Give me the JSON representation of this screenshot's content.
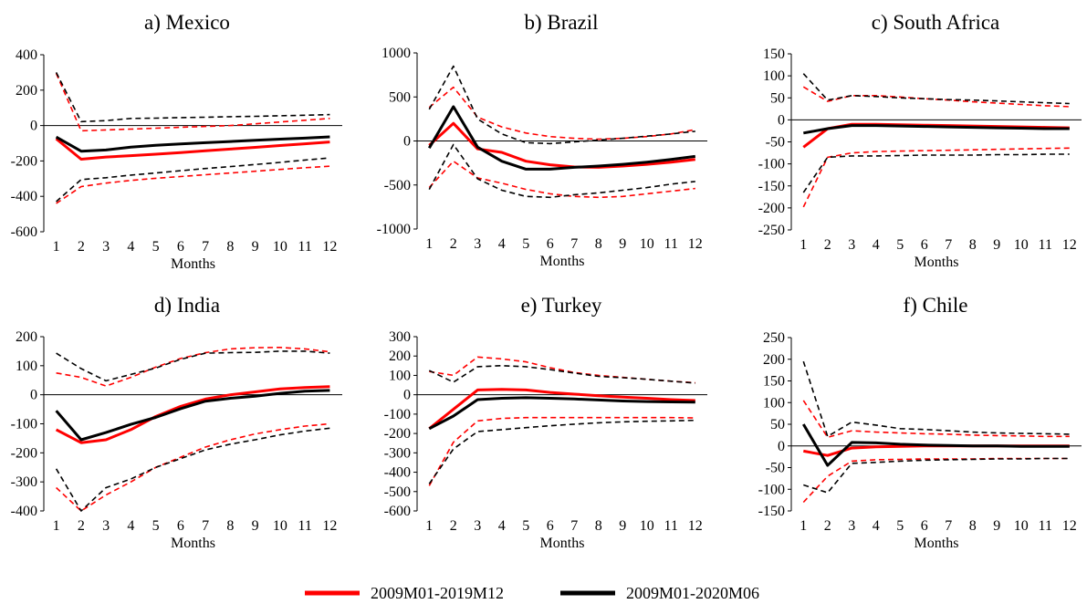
{
  "legend": [
    {
      "name": "2009M01-2019M12",
      "color": "#ff0000"
    },
    {
      "name": "2009M01-2020M06",
      "color": "#000000"
    }
  ],
  "chart_data": [
    {
      "type": "line",
      "title": "a) Mexico",
      "xlabel": "Months",
      "ylabel": "",
      "x": [
        1,
        2,
        3,
        4,
        5,
        6,
        7,
        8,
        9,
        10,
        11,
        12
      ],
      "ylim": [
        -600,
        400
      ],
      "yticks": [
        -600,
        -400,
        -200,
        0,
        200,
        400
      ],
      "series": [
        {
          "name": "2009M01-2019M12",
          "color": "#ff0000",
          "style": "solid",
          "values": [
            -75,
            -190,
            -178,
            -170,
            -162,
            -153,
            -143,
            -133,
            -123,
            -113,
            -103,
            -93
          ]
        },
        {
          "name": "2009M01-2019M12",
          "color": "#ff0000",
          "style": "dashed",
          "values": [
            295,
            -30,
            -25,
            -20,
            -15,
            -10,
            -5,
            0,
            10,
            20,
            30,
            40
          ]
        },
        {
          "name": "2009M01-2019M12",
          "color": "#ff0000",
          "style": "dashed",
          "values": [
            -440,
            -345,
            -325,
            -310,
            -298,
            -288,
            -278,
            -268,
            -258,
            -248,
            -238,
            -230
          ]
        },
        {
          "name": "2009M01-2020M06",
          "color": "#000000",
          "style": "solid",
          "values": [
            -65,
            -145,
            -138,
            -122,
            -112,
            -104,
            -97,
            -90,
            -83,
            -77,
            -71,
            -64
          ]
        },
        {
          "name": "2009M01-2020M06",
          "color": "#000000",
          "style": "dashed",
          "values": [
            300,
            22,
            28,
            40,
            42,
            45,
            47,
            50,
            52,
            55,
            58,
            62
          ]
        },
        {
          "name": "2009M01-2020M06",
          "color": "#000000",
          "style": "dashed",
          "values": [
            -430,
            -305,
            -295,
            -280,
            -268,
            -255,
            -243,
            -232,
            -220,
            -208,
            -195,
            -183
          ]
        }
      ]
    },
    {
      "type": "line",
      "title": "b) Brazil",
      "xlabel": "Months",
      "ylabel": "",
      "x": [
        1,
        2,
        3,
        4,
        5,
        6,
        7,
        8,
        9,
        10,
        11,
        12
      ],
      "ylim": [
        -1000,
        1000
      ],
      "yticks": [
        -1000,
        -500,
        0,
        500,
        1000
      ],
      "series": [
        {
          "name": "2009M01-2019M12",
          "color": "#ff0000",
          "style": "solid",
          "values": [
            -50,
            200,
            -90,
            -130,
            -230,
            -270,
            -295,
            -300,
            -285,
            -265,
            -240,
            -210
          ]
        },
        {
          "name": "2009M01-2019M12",
          "color": "#ff0000",
          "style": "dashed",
          "values": [
            380,
            610,
            270,
            160,
            90,
            50,
            30,
            20,
            30,
            50,
            80,
            130
          ]
        },
        {
          "name": "2009M01-2019M12",
          "color": "#ff0000",
          "style": "dashed",
          "values": [
            -530,
            -230,
            -420,
            -480,
            -550,
            -600,
            -630,
            -640,
            -630,
            -600,
            -570,
            -540
          ]
        },
        {
          "name": "2009M01-2020M06",
          "color": "#000000",
          "style": "solid",
          "values": [
            -80,
            390,
            -70,
            -230,
            -320,
            -320,
            -300,
            -285,
            -265,
            -240,
            -210,
            -175
          ]
        },
        {
          "name": "2009M01-2020M06",
          "color": "#000000",
          "style": "dashed",
          "values": [
            360,
            850,
            250,
            80,
            -20,
            -30,
            -10,
            10,
            30,
            55,
            80,
            110
          ]
        },
        {
          "name": "2009M01-2020M06",
          "color": "#000000",
          "style": "dashed",
          "values": [
            -550,
            -40,
            -430,
            -560,
            -630,
            -640,
            -610,
            -590,
            -560,
            -530,
            -490,
            -460
          ]
        }
      ]
    },
    {
      "type": "line",
      "title": "c) South Africa",
      "xlabel": "Months",
      "ylabel": "",
      "x": [
        1,
        2,
        3,
        4,
        5,
        6,
        7,
        8,
        9,
        10,
        11,
        12
      ],
      "ylim": [
        -250,
        150
      ],
      "yticks": [
        -250,
        -200,
        -150,
        -100,
        -50,
        0,
        50,
        100,
        150
      ],
      "series": [
        {
          "name": "2009M01-2019M12",
          "color": "#ff0000",
          "style": "solid",
          "values": [
            -62,
            -20,
            -10,
            -10,
            -11,
            -12,
            -13,
            -14,
            -15,
            -16,
            -17,
            -18
          ]
        },
        {
          "name": "2009M01-2019M12",
          "color": "#ff0000",
          "style": "dashed",
          "values": [
            75,
            42,
            55,
            55,
            52,
            48,
            45,
            41,
            38,
            35,
            32,
            30
          ]
        },
        {
          "name": "2009M01-2019M12",
          "color": "#ff0000",
          "style": "dashed",
          "values": [
            -198,
            -85,
            -75,
            -72,
            -71,
            -70,
            -69,
            -68,
            -67,
            -66,
            -65,
            -64
          ]
        },
        {
          "name": "2009M01-2020M06",
          "color": "#000000",
          "style": "solid",
          "values": [
            -30,
            -20,
            -13,
            -13,
            -14,
            -15,
            -16,
            -17,
            -18,
            -19,
            -20,
            -20
          ]
        },
        {
          "name": "2009M01-2020M06",
          "color": "#000000",
          "style": "dashed",
          "values": [
            105,
            45,
            55,
            53,
            50,
            48,
            46,
            45,
            43,
            41,
            39,
            37
          ]
        },
        {
          "name": "2009M01-2020M06",
          "color": "#000000",
          "style": "dashed",
          "values": [
            -165,
            -85,
            -82,
            -82,
            -81,
            -80,
            -80,
            -80,
            -79,
            -79,
            -78,
            -78
          ]
        }
      ]
    },
    {
      "type": "line",
      "title": "d) India",
      "xlabel": "Months",
      "ylabel": "",
      "x": [
        1,
        2,
        3,
        4,
        5,
        6,
        7,
        8,
        9,
        10,
        11,
        12
      ],
      "ylim": [
        -400,
        200
      ],
      "yticks": [
        -400,
        -300,
        -200,
        -100,
        0,
        100,
        200
      ],
      "series": [
        {
          "name": "2009M01-2019M12",
          "color": "#ff0000",
          "style": "solid",
          "values": [
            -120,
            -165,
            -155,
            -120,
            -75,
            -40,
            -15,
            0,
            10,
            20,
            25,
            28
          ]
        },
        {
          "name": "2009M01-2019M12",
          "color": "#ff0000",
          "style": "dashed",
          "values": [
            75,
            60,
            30,
            60,
            95,
            125,
            145,
            158,
            162,
            163,
            158,
            148
          ]
        },
        {
          "name": "2009M01-2019M12",
          "color": "#ff0000",
          "style": "dashed",
          "values": [
            -320,
            -400,
            -345,
            -300,
            -250,
            -215,
            -180,
            -155,
            -135,
            -120,
            -108,
            -100
          ]
        },
        {
          "name": "2009M01-2020M06",
          "color": "#000000",
          "style": "solid",
          "values": [
            -55,
            -155,
            -130,
            -102,
            -78,
            -48,
            -22,
            -12,
            -5,
            5,
            12,
            15
          ]
        },
        {
          "name": "2009M01-2020M06",
          "color": "#000000",
          "style": "dashed",
          "values": [
            143,
            90,
            48,
            70,
            92,
            122,
            143,
            145,
            146,
            150,
            150,
            143
          ]
        },
        {
          "name": "2009M01-2020M06",
          "color": "#000000",
          "style": "dashed",
          "values": [
            -255,
            -400,
            -320,
            -290,
            -250,
            -220,
            -190,
            -170,
            -155,
            -138,
            -125,
            -115
          ]
        }
      ]
    },
    {
      "type": "line",
      "title": "e) Turkey",
      "xlabel": "Months",
      "ylabel": "",
      "x": [
        1,
        2,
        3,
        4,
        5,
        6,
        7,
        8,
        9,
        10,
        11,
        12
      ],
      "ylim": [
        -600,
        300
      ],
      "yticks": [
        -600,
        -500,
        -400,
        -300,
        -200,
        -100,
        0,
        100,
        200,
        300
      ],
      "series": [
        {
          "name": "2009M01-2019M12",
          "color": "#ff0000",
          "style": "solid",
          "values": [
            -175,
            -75,
            25,
            28,
            25,
            12,
            3,
            -5,
            -12,
            -18,
            -25,
            -30
          ]
        },
        {
          "name": "2009M01-2019M12",
          "color": "#ff0000",
          "style": "dashed",
          "values": [
            120,
            100,
            195,
            185,
            170,
            140,
            115,
            100,
            90,
            80,
            70,
            62
          ]
        },
        {
          "name": "2009M01-2019M12",
          "color": "#ff0000",
          "style": "dashed",
          "values": [
            -470,
            -245,
            -135,
            -122,
            -118,
            -118,
            -118,
            -118,
            -118,
            -118,
            -118,
            -120
          ]
        },
        {
          "name": "2009M01-2020M06",
          "color": "#000000",
          "style": "solid",
          "values": [
            -175,
            -110,
            -25,
            -18,
            -15,
            -18,
            -22,
            -27,
            -32,
            -35,
            -37,
            -38
          ]
        },
        {
          "name": "2009M01-2020M06",
          "color": "#000000",
          "style": "dashed",
          "values": [
            125,
            65,
            145,
            150,
            145,
            130,
            112,
            95,
            88,
            80,
            70,
            60
          ]
        },
        {
          "name": "2009M01-2020M06",
          "color": "#000000",
          "style": "dashed",
          "values": [
            -460,
            -280,
            -190,
            -180,
            -170,
            -160,
            -152,
            -145,
            -140,
            -137,
            -135,
            -132
          ]
        }
      ]
    },
    {
      "type": "line",
      "title": "f) Chile",
      "xlabel": "Months",
      "ylabel": "",
      "x": [
        1,
        2,
        3,
        4,
        5,
        6,
        7,
        8,
        9,
        10,
        11,
        12
      ],
      "ylim": [
        -150,
        250
      ],
      "yticks": [
        -150,
        -100,
        -50,
        0,
        50,
        100,
        150,
        200,
        250
      ],
      "series": [
        {
          "name": "2009M01-2019M12",
          "color": "#ff0000",
          "style": "solid",
          "values": [
            -12,
            -22,
            -5,
            -2,
            -1,
            0,
            0,
            0,
            0,
            0,
            0,
            0
          ]
        },
        {
          "name": "2009M01-2019M12",
          "color": "#ff0000",
          "style": "dashed",
          "values": [
            105,
            20,
            35,
            32,
            30,
            28,
            27,
            25,
            24,
            23,
            22,
            22
          ]
        },
        {
          "name": "2009M01-2019M12",
          "color": "#ff0000",
          "style": "dashed",
          "values": [
            -130,
            -70,
            -35,
            -32,
            -31,
            -30,
            -30,
            -30,
            -29,
            -29,
            -29,
            -29
          ]
        },
        {
          "name": "2009M01-2020M06",
          "color": "#000000",
          "style": "solid",
          "values": [
            50,
            -45,
            8,
            7,
            4,
            2,
            1,
            0,
            0,
            -1,
            -1,
            -1
          ]
        },
        {
          "name": "2009M01-2020M06",
          "color": "#000000",
          "style": "dashed",
          "values": [
            195,
            22,
            55,
            48,
            40,
            38,
            35,
            32,
            30,
            29,
            28,
            27
          ]
        },
        {
          "name": "2009M01-2020M06",
          "color": "#000000",
          "style": "dashed",
          "values": [
            -90,
            -108,
            -40,
            -38,
            -35,
            -33,
            -32,
            -31,
            -30,
            -30,
            -29,
            -29
          ]
        }
      ]
    }
  ]
}
